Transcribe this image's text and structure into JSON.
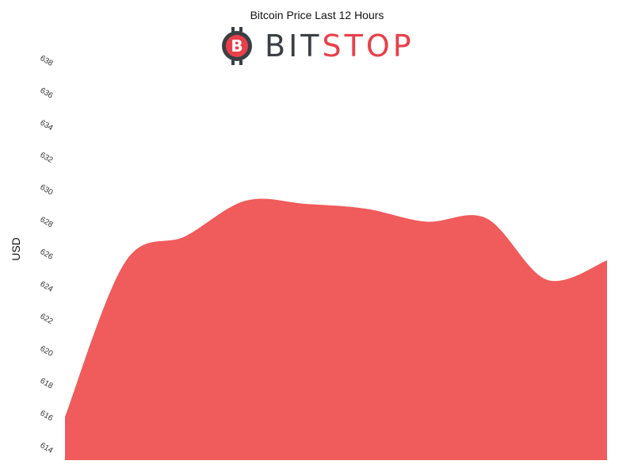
{
  "header": {
    "title": "Bitcoin Price Last 12 Hours",
    "logo": {
      "part1": "BIT",
      "part2": "STOP",
      "badge": "B",
      "colors": {
        "dark": "#3a3f44",
        "red": "#e8404a"
      }
    }
  },
  "chart_data": {
    "type": "area",
    "title": "Bitcoin Price Last 12 Hours",
    "xlabel": "",
    "ylabel": "USD",
    "ylim": [
      614,
      638
    ],
    "yticks": [
      "614",
      "616",
      "618",
      "620",
      "622",
      "624",
      "626",
      "628",
      "630",
      "632",
      "634",
      "636",
      "638"
    ],
    "grid": false,
    "legend": "none",
    "color": "#f05b5b",
    "series": [
      {
        "values": [
          615.7,
          625.3,
          626.9,
          629.1,
          628.9,
          628.6,
          627.8,
          628.0,
          624.2,
          625.4
        ]
      }
    ]
  }
}
